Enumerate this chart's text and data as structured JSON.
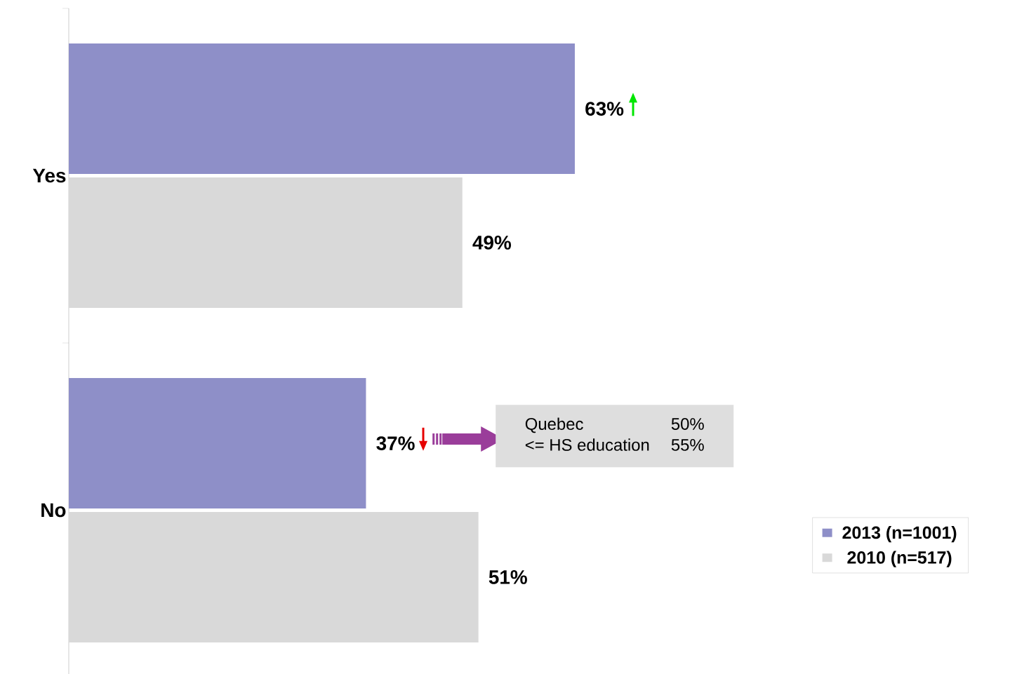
{
  "chart_data": {
    "type": "bar",
    "orientation": "horizontal",
    "categories": [
      "Yes",
      "No"
    ],
    "series": [
      {
        "name": "2013 (n=1001)",
        "color": "#8e8fc8",
        "values": [
          63,
          37
        ],
        "value_labels": [
          "63%",
          "37%"
        ]
      },
      {
        "name": "2010 (n=517)",
        "color": "#d9d9d9",
        "values": [
          49,
          51
        ],
        "value_labels": [
          "49%",
          "51%"
        ]
      }
    ],
    "annotations": [
      "Quebec",
      "50%",
      "<= HS education",
      "55%"
    ],
    "legend": "right"
  }
}
